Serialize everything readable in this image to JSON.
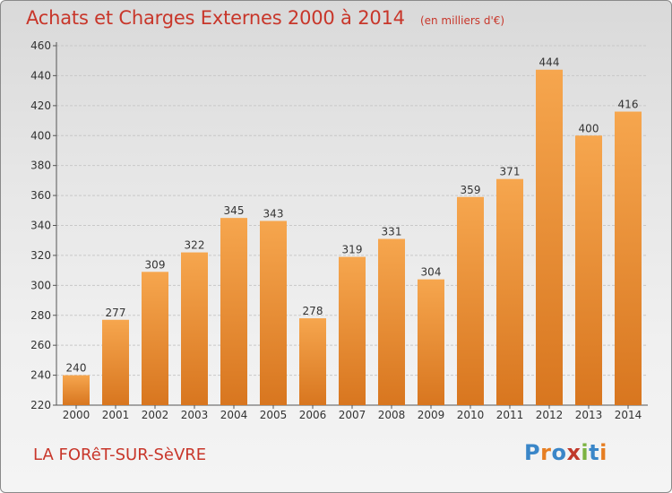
{
  "header": {
    "title": "Achats et Charges Externes 2000 à 2014",
    "subtitle": "(en milliers d'€)"
  },
  "footer": {
    "town": "LA FORêT-SUR-SèVRE",
    "logo": {
      "text": "Proxiti",
      "letters": [
        {
          "char": "P",
          "color": "#3a86c8"
        },
        {
          "char": "r",
          "color": "#e67e22"
        },
        {
          "char": "o",
          "color": "#3a86c8"
        },
        {
          "char": "x",
          "color": "#c0392b"
        },
        {
          "char": "i",
          "color": "#7cb342"
        },
        {
          "char": "t",
          "color": "#3a86c8"
        },
        {
          "char": "i",
          "color": "#e67e22"
        }
      ]
    }
  },
  "colors": {
    "bar_light": "#f6a64e",
    "bar_dark": "#d8761f",
    "grid": "#c8c8c8",
    "axis": "#555555",
    "label": "#333333",
    "title": "#c8362a"
  },
  "chart_data": {
    "type": "bar",
    "categories": [
      "2000",
      "2001",
      "2002",
      "2003",
      "2004",
      "2005",
      "2006",
      "2007",
      "2008",
      "2009",
      "2010",
      "2011",
      "2012",
      "2013",
      "2014"
    ],
    "values": [
      240,
      277,
      309,
      322,
      345,
      343,
      278,
      319,
      331,
      304,
      359,
      371,
      444,
      400,
      416
    ],
    "title": "Achats et Charges Externes 2000 à 2014",
    "subtitle": "(en milliers d'€)",
    "xlabel": "",
    "ylabel": "",
    "ylim": [
      220,
      460
    ],
    "yticks": [
      220,
      240,
      260,
      280,
      300,
      320,
      340,
      360,
      380,
      400,
      420,
      440,
      460
    ],
    "grid": true,
    "data_labels": true
  }
}
